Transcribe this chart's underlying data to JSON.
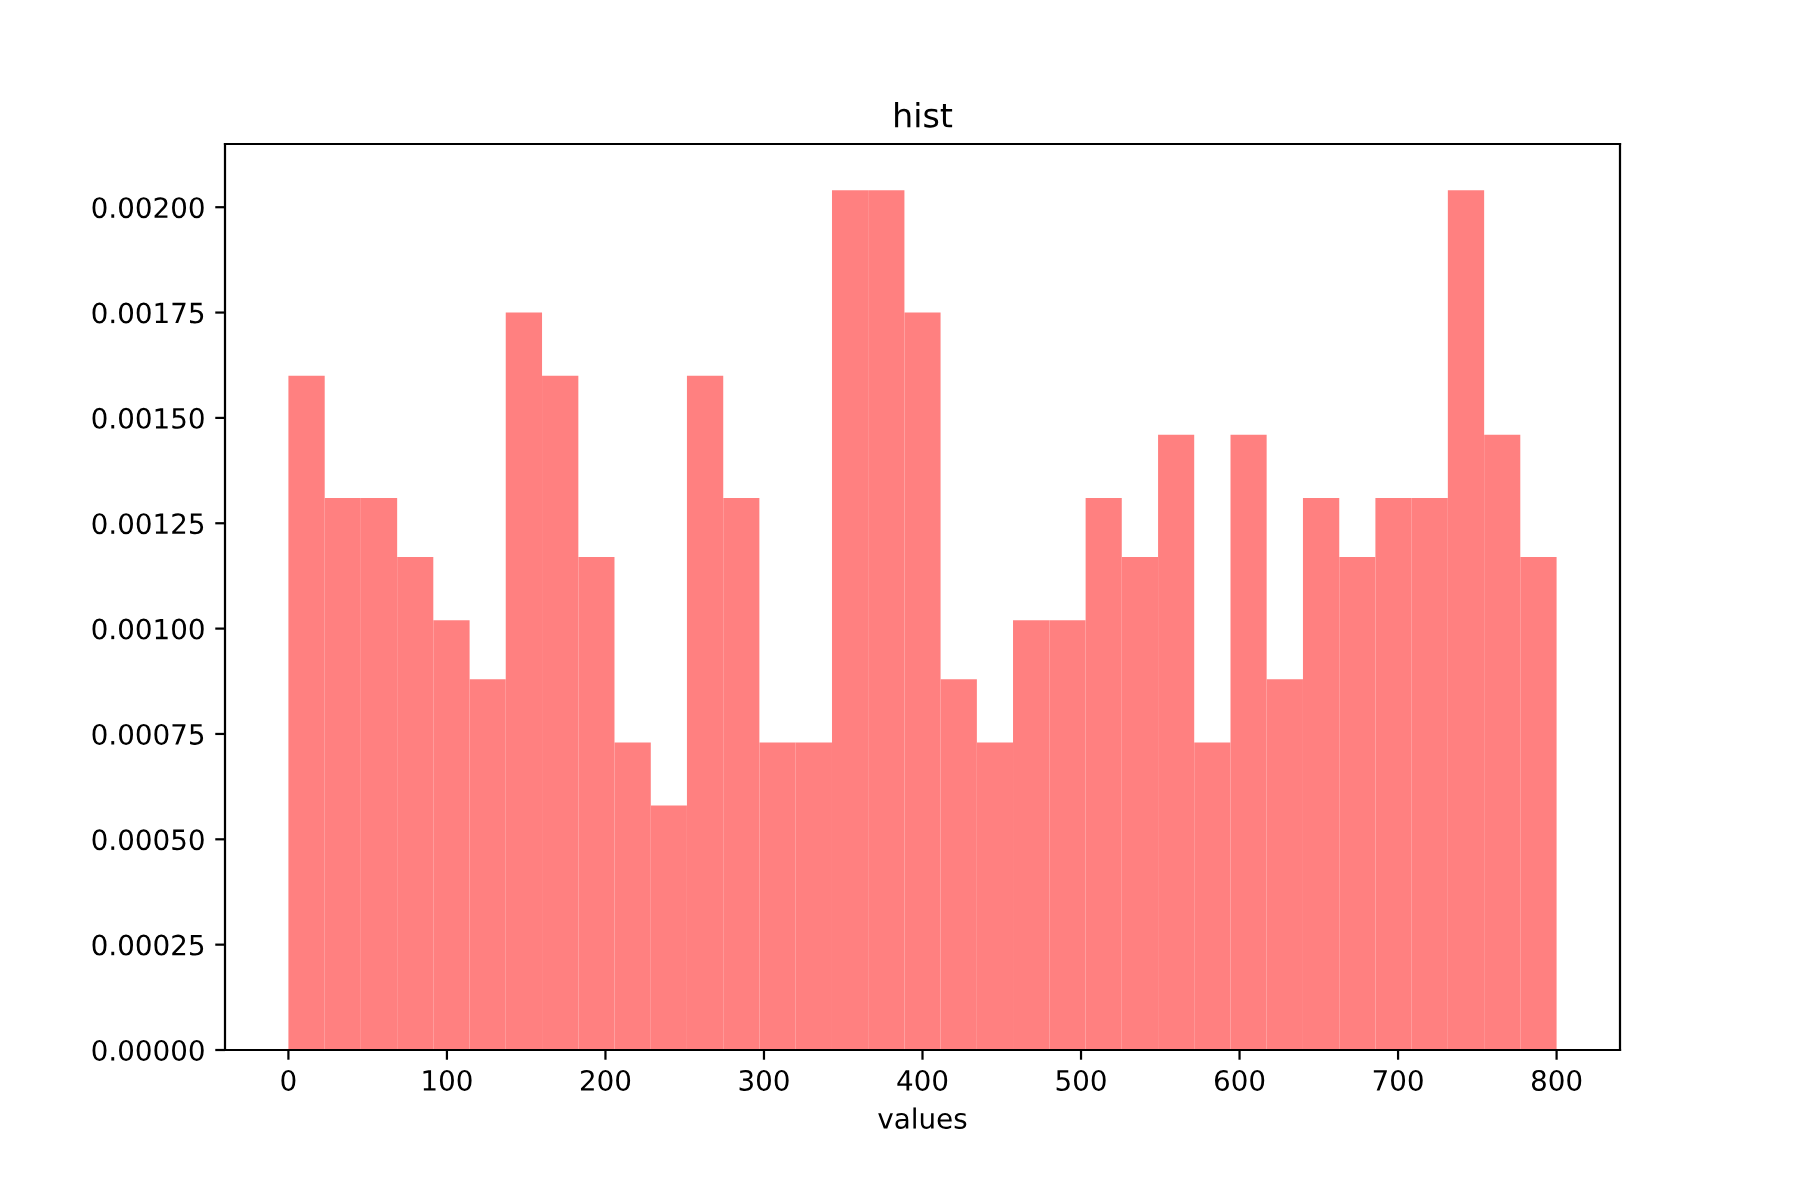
{
  "chart_data": {
    "type": "histogram",
    "title": "hist",
    "xlabel": "values",
    "bins": [
      0,
      22.9,
      45.7,
      68.6,
      91.4,
      114.3,
      137.1,
      160,
      182.9,
      205.7,
      228.6,
      251.4,
      274.3,
      297.1,
      320,
      342.9,
      365.7,
      388.6,
      411.4,
      434.3,
      457.1,
      480,
      502.9,
      525.7,
      548.6,
      571.4,
      594.3,
      617.1,
      640,
      662.9,
      685.7,
      708.6,
      731.4,
      754.3,
      777.1,
      800
    ],
    "values": [
      0.0016,
      0.00131,
      0.00131,
      0.00117,
      0.00102,
      0.00088,
      0.00175,
      0.0016,
      0.00117,
      0.00073,
      0.00058,
      0.0016,
      0.00131,
      0.00073,
      0.00073,
      0.00204,
      0.00204,
      0.00175,
      0.00088,
      0.00073,
      0.00102,
      0.00102,
      0.00131,
      0.00117,
      0.00146,
      0.00073,
      0.00146,
      0.00088,
      0.00131,
      0.00117,
      0.00131,
      0.00131,
      0.00204,
      0.00146,
      0.00117
    ],
    "color": "#ff8080",
    "xlim": [
      -40,
      840
    ],
    "xticks": [
      0,
      100,
      200,
      300,
      400,
      500,
      600,
      700,
      800
    ],
    "ylim": [
      0,
      0.00215
    ],
    "yticks": [
      {
        "value": 0,
        "label": "0.00000"
      },
      {
        "value": 0.00025,
        "label": "0.00025"
      },
      {
        "value": 0.0005,
        "label": "0.00050"
      },
      {
        "value": 0.00075,
        "label": "0.00075"
      },
      {
        "value": 0.001,
        "label": "0.00100"
      },
      {
        "value": 0.00125,
        "label": "0.00125"
      },
      {
        "value": 0.0015,
        "label": "0.00150"
      },
      {
        "value": 0.00175,
        "label": "0.00175"
      },
      {
        "value": 0.002,
        "label": "0.00200"
      }
    ],
    "grid": false
  }
}
